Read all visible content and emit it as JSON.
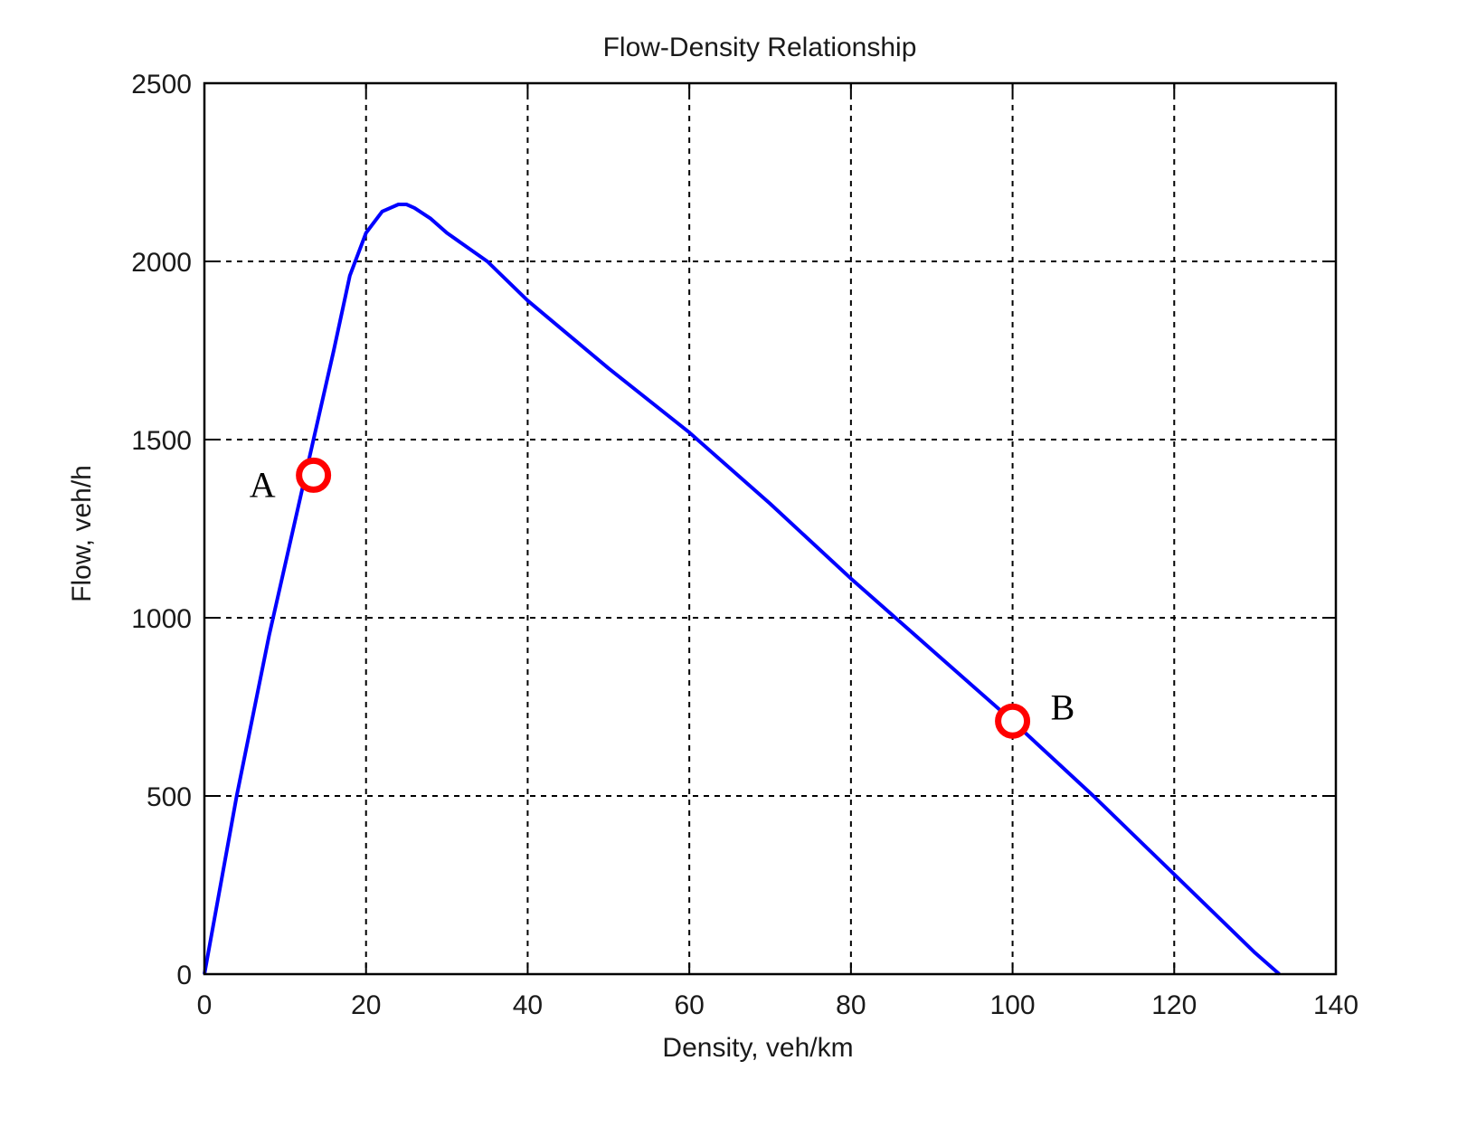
{
  "chart_data": {
    "type": "line",
    "title": "Flow-Density Relationship",
    "xlabel": "Density, veh/km",
    "ylabel": "Flow, veh/h",
    "xlim": [
      0,
      140
    ],
    "ylim": [
      0,
      2500
    ],
    "xticks": [
      0,
      20,
      40,
      60,
      80,
      100,
      120,
      140
    ],
    "yticks": [
      0,
      500,
      1000,
      1500,
      2000,
      2500
    ],
    "grid": true,
    "line_color": "#0000ff",
    "marker_color": "#ff0000",
    "series": [
      {
        "x": [
          0,
          4,
          8,
          12,
          14,
          16,
          18,
          20,
          22,
          24,
          25,
          26,
          28,
          30,
          35,
          40,
          50,
          60,
          70,
          80,
          90,
          100,
          110,
          120,
          130,
          133
        ],
        "y": [
          0,
          500,
          950,
          1350,
          1550,
          1750,
          1960,
          2080,
          2140,
          2160,
          2160,
          2150,
          2120,
          2080,
          2000,
          1890,
          1700,
          1520,
          1320,
          1110,
          910,
          710,
          500,
          280,
          60,
          0
        ]
      }
    ],
    "points": [
      {
        "label": "A",
        "x": 13.5,
        "y": 1400
      },
      {
        "label": "B",
        "x": 100,
        "y": 710
      }
    ]
  }
}
